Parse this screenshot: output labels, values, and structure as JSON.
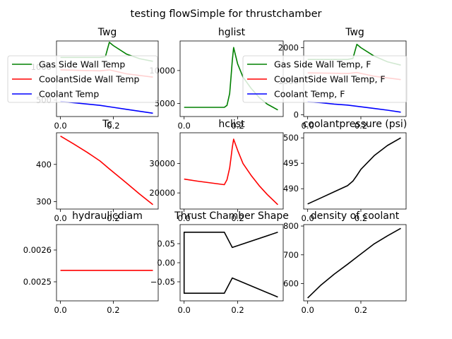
{
  "suptitle": "testing flowSimple for thrustchamber",
  "colors": {
    "green": "#008000",
    "red": "#ff0000",
    "blue": "#0000ff",
    "black": "#000000"
  },
  "chart_data": [
    {
      "id": "twg1",
      "type": "line",
      "title": "Twg",
      "xlim": [
        -0.015,
        0.37
      ],
      "ylim": [
        250,
        1400
      ],
      "xticks": [
        {
          "v": 0.0,
          "label": "0.0"
        },
        {
          "v": 0.2,
          "label": "0.2"
        }
      ],
      "yticks": [
        {
          "v": 500,
          "label": "500"
        },
        {
          "v": 1000,
          "label": "1000"
        }
      ],
      "legend": {
        "placement": "left, overlapping panel",
        "entries": [
          "Gas Side Wall Temp",
          "CoolantSide Wall Temp",
          "Coolant Temp"
        ]
      },
      "series": [
        {
          "name": "Gas Side Wall Temp",
          "color": "green",
          "x": [
            0,
            0.05,
            0.1,
            0.15,
            0.17,
            0.185,
            0.2,
            0.25,
            0.3,
            0.35
          ],
          "y": [
            1150,
            1150,
            1150,
            1150,
            1160,
            1380,
            1330,
            1200,
            1130,
            1090
          ]
        },
        {
          "name": "CoolantSide Wall Temp",
          "color": "red",
          "x": [
            0,
            0.1,
            0.15,
            0.185,
            0.25,
            0.35
          ],
          "y": [
            960,
            950,
            945,
            960,
            900,
            850
          ]
        },
        {
          "name": "Coolant Temp",
          "color": "blue",
          "x": [
            0,
            0.05,
            0.1,
            0.15,
            0.2,
            0.25,
            0.3,
            0.35
          ],
          "y": [
            480,
            460,
            440,
            420,
            390,
            360,
            330,
            300
          ]
        }
      ]
    },
    {
      "id": "hglist",
      "type": "line",
      "title": "hglist",
      "xlim": [
        -0.015,
        0.37
      ],
      "ylim": [
        3000,
        14500
      ],
      "xticks": [
        {
          "v": 0.0,
          "label": "0.0"
        },
        {
          "v": 0.2,
          "label": "0.2"
        }
      ],
      "yticks": [
        {
          "v": 5000,
          "label": "5000"
        },
        {
          "v": 10000,
          "label": "10000"
        }
      ],
      "series": [
        {
          "name": "",
          "color": "green",
          "x": [
            0,
            0.05,
            0.1,
            0.15,
            0.16,
            0.17,
            0.175,
            0.18,
            0.185,
            0.2,
            0.22,
            0.25,
            0.28,
            0.31,
            0.35
          ],
          "y": [
            4400,
            4400,
            4400,
            4400,
            4700,
            6500,
            9000,
            11500,
            13500,
            11000,
            9000,
            7300,
            5900,
            4900,
            4000
          ]
        }
      ]
    },
    {
      "id": "twgF",
      "type": "line",
      "title": "Twg",
      "xlim": [
        -0.015,
        0.37
      ],
      "ylim": [
        -50,
        2200
      ],
      "xticks": [
        {
          "v": 0.0,
          "label": "0.0"
        },
        {
          "v": 0.2,
          "label": "0.2"
        }
      ],
      "yticks": [
        {
          "v": 0,
          "label": "0"
        },
        {
          "v": 1000,
          "label": "1000"
        },
        {
          "v": 2000,
          "label": "2000"
        }
      ],
      "legend": {
        "placement": "center-right, overlapping panel",
        "entries": [
          "Gas Side Wall Temp, F",
          "CoolantSide Wall Temp, F",
          "Coolant Temp, F"
        ]
      },
      "series": [
        {
          "name": "Gas Side Wall Temp, F",
          "color": "green",
          "x": [
            0,
            0.05,
            0.1,
            0.15,
            0.17,
            0.185,
            0.2,
            0.25,
            0.3,
            0.35
          ],
          "y": [
            1650,
            1650,
            1650,
            1650,
            1680,
            2100,
            2000,
            1750,
            1580,
            1480
          ]
        },
        {
          "name": "CoolantSide Wall Temp, F",
          "color": "red",
          "x": [
            0,
            0.1,
            0.15,
            0.185,
            0.25,
            0.35
          ],
          "y": [
            1250,
            1240,
            1230,
            1260,
            1150,
            1050
          ]
        },
        {
          "name": "Coolant Temp, F",
          "color": "blue",
          "x": [
            0,
            0.05,
            0.1,
            0.15,
            0.2,
            0.25,
            0.3,
            0.35
          ],
          "y": [
            390,
            360,
            320,
            290,
            240,
            190,
            140,
            80
          ]
        }
      ]
    },
    {
      "id": "tc",
      "type": "line",
      "title": "Tc",
      "xlim": [
        -0.015,
        0.37
      ],
      "ylim": [
        280,
        485
      ],
      "xticks": [
        {
          "v": 0.0,
          "label": "0.0"
        },
        {
          "v": 0.2,
          "label": "0.2"
        }
      ],
      "yticks": [
        {
          "v": 300,
          "label": "300"
        },
        {
          "v": 400,
          "label": "400"
        }
      ],
      "series": [
        {
          "name": "",
          "color": "red",
          "x": [
            0,
            0.05,
            0.1,
            0.15,
            0.185,
            0.25,
            0.3,
            0.35
          ],
          "y": [
            476,
            455,
            433,
            409,
            388,
            350,
            320,
            292
          ]
        }
      ]
    },
    {
      "id": "hclist",
      "type": "line",
      "title": "hclist",
      "xlim": [
        -0.015,
        0.37
      ],
      "ylim": [
        14500,
        40500
      ],
      "xticks": [
        {
          "v": 0.0,
          "label": "0.0"
        },
        {
          "v": 0.2,
          "label": "0.2"
        }
      ],
      "yticks": [
        {
          "v": 20000,
          "label": "20000"
        },
        {
          "v": 30000,
          "label": "30000"
        }
      ],
      "series": [
        {
          "name": "",
          "color": "red",
          "x": [
            0,
            0.05,
            0.1,
            0.15,
            0.16,
            0.17,
            0.175,
            0.18,
            0.185,
            0.2,
            0.22,
            0.25,
            0.28,
            0.31,
            0.35
          ],
          "y": [
            24700,
            24000,
            23400,
            22800,
            24500,
            28500,
            32000,
            35500,
            38300,
            34500,
            30000,
            26000,
            22500,
            19500,
            16000
          ]
        }
      ]
    },
    {
      "id": "coolantpressure",
      "type": "line",
      "title": "coolantpressure (psi)",
      "xlim": [
        -0.015,
        0.37
      ],
      "ylim": [
        486,
        501
      ],
      "xticks": [
        {
          "v": 0.0,
          "label": "0.0"
        },
        {
          "v": 0.2,
          "label": "0.2"
        }
      ],
      "yticks": [
        {
          "v": 490,
          "label": "490"
        },
        {
          "v": 495,
          "label": "495"
        },
        {
          "v": 500,
          "label": "500"
        }
      ],
      "series": [
        {
          "name": "",
          "color": "black",
          "x": [
            0,
            0.05,
            0.1,
            0.15,
            0.17,
            0.185,
            0.2,
            0.25,
            0.3,
            0.35
          ],
          "y": [
            487.0,
            488.2,
            489.4,
            490.6,
            491.5,
            492.6,
            493.8,
            496.5,
            498.5,
            500.0
          ]
        }
      ]
    },
    {
      "id": "hydraulicdiam",
      "type": "line",
      "title": "hydraulicdiam",
      "xlim": [
        -0.015,
        0.37
      ],
      "ylim": [
        0.00244,
        0.00268
      ],
      "xticks": [
        {
          "v": 0.0,
          "label": "0.0"
        },
        {
          "v": 0.2,
          "label": "0.2"
        }
      ],
      "yticks": [
        {
          "v": 0.0025,
          "label": "0.0025"
        },
        {
          "v": 0.0026,
          "label": "0.0026"
        }
      ],
      "series": [
        {
          "name": "",
          "color": "red",
          "x": [
            0,
            0.35
          ],
          "y": [
            0.002536,
            0.002536
          ]
        }
      ]
    },
    {
      "id": "shape",
      "type": "line",
      "title": "Thrust Chamber Shape",
      "xlim": [
        -0.015,
        0.37
      ],
      "ylim": [
        -0.1,
        0.1
      ],
      "xticks": [
        {
          "v": 0.0,
          "label": "0.0"
        },
        {
          "v": 0.2,
          "label": "0.2"
        }
      ],
      "yticks": [
        {
          "v": -0.05,
          "label": "−0.05"
        },
        {
          "v": 0.0,
          "label": "0.00"
        },
        {
          "v": 0.05,
          "label": "0.05"
        }
      ],
      "series": [
        {
          "name": "",
          "color": "black",
          "x": [
            0.35,
            0.18,
            0.15,
            0.0,
            0.0,
            0.15,
            0.18,
            0.35
          ],
          "y": [
            0.08,
            0.04,
            0.08,
            0.08,
            -0.08,
            -0.08,
            -0.04,
            -0.09
          ]
        }
      ]
    },
    {
      "id": "density",
      "type": "line",
      "title": "density of coolant",
      "xlim": [
        -0.015,
        0.37
      ],
      "ylim": [
        540,
        805
      ],
      "xticks": [
        {
          "v": 0.0,
          "label": "0.0"
        },
        {
          "v": 0.2,
          "label": "0.2"
        }
      ],
      "yticks": [
        {
          "v": 600,
          "label": "600"
        },
        {
          "v": 700,
          "label": "700"
        },
        {
          "v": 800,
          "label": "800"
        }
      ],
      "series": [
        {
          "name": "",
          "color": "black",
          "x": [
            0,
            0.05,
            0.1,
            0.15,
            0.2,
            0.25,
            0.3,
            0.35
          ],
          "y": [
            550,
            595,
            633,
            667,
            703,
            738,
            766,
            792
          ]
        }
      ]
    }
  ]
}
